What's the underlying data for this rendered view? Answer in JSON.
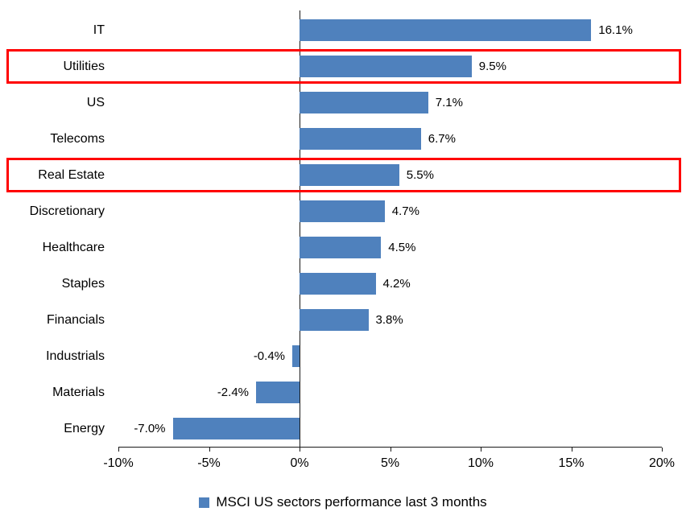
{
  "chart_data": {
    "type": "bar",
    "orientation": "horizontal",
    "title": "",
    "categories": [
      "IT",
      "Utilities",
      "US",
      "Telecoms",
      "Real Estate",
      "Discretionary",
      "Healthcare",
      "Staples",
      "Financials",
      "Industrials",
      "Materials",
      "Energy"
    ],
    "values": [
      16.1,
      9.5,
      7.1,
      6.7,
      5.5,
      4.7,
      4.5,
      4.2,
      3.8,
      -0.4,
      -2.4,
      -7.0
    ],
    "value_labels": [
      "16.1%",
      "9.5%",
      "7.1%",
      "6.7%",
      "5.5%",
      "4.7%",
      "4.5%",
      "4.2%",
      "3.8%",
      "-0.4%",
      "-2.4%",
      "-7.0%"
    ],
    "highlighted_categories": [
      "Utilities",
      "Real Estate"
    ],
    "xlim": [
      -10,
      20
    ],
    "x_ticks": [
      -10,
      -5,
      0,
      5,
      10,
      15,
      20
    ],
    "x_tick_labels": [
      "-10%",
      "-5%",
      "0%",
      "5%",
      "10%",
      "15%",
      "20%"
    ],
    "grid": false,
    "legend_position": "bottom-center",
    "legend": {
      "label": "MSCI US sectors performance last 3 months",
      "marker_color": "#4f81bd"
    },
    "colors": {
      "bar": "#4f81bd",
      "highlight_box": "#ff0000",
      "axis": "#1a1a1a"
    }
  }
}
